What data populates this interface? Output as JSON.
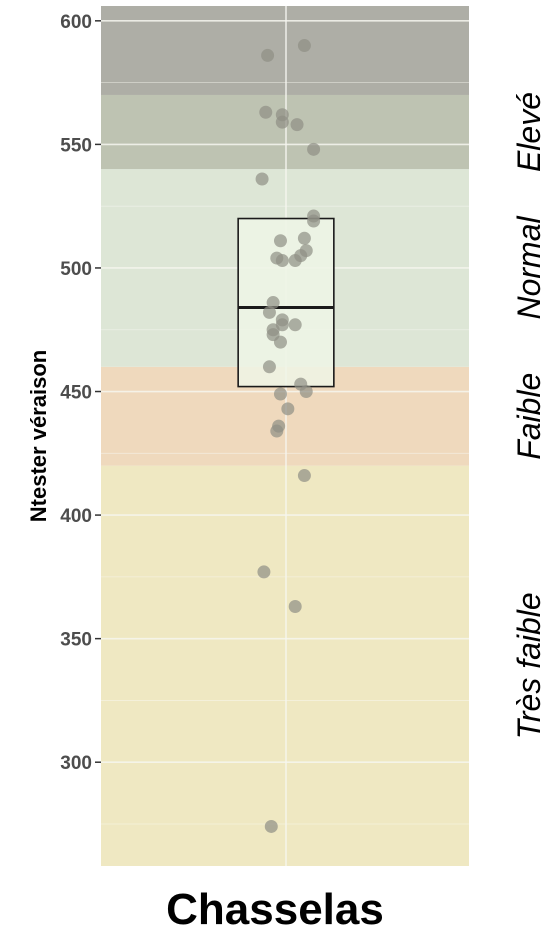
{
  "chart_data": {
    "type": "box",
    "ylabel": "Ntester véraison",
    "xlabel": "",
    "categories": [
      "Chasselas"
    ],
    "ylim": [
      258,
      606
    ],
    "yticks": [
      300,
      350,
      400,
      450,
      500,
      550,
      600
    ],
    "grid": true,
    "bands": [
      {
        "label": "Très faible",
        "from": 258,
        "to": 420,
        "color": "#efe8c2"
      },
      {
        "label": "Faible",
        "from": 420,
        "to": 460,
        "color": "#efd9bd"
      },
      {
        "label": "Normal",
        "from": 460,
        "to": 540,
        "color": "#dde6d6"
      },
      {
        "label": "Elevé",
        "from": 540,
        "to": 570,
        "color": "#bec3b2"
      },
      {
        "label": "",
        "from": 570,
        "to": 606,
        "color": "#aeaea6"
      }
    ],
    "box": {
      "q1": 452,
      "median": 484,
      "q3": 520
    },
    "points": [
      {
        "x": -0.1,
        "y": 586
      },
      {
        "x": 0.1,
        "y": 590
      },
      {
        "x": -0.11,
        "y": 563
      },
      {
        "x": -0.02,
        "y": 562
      },
      {
        "x": -0.02,
        "y": 559
      },
      {
        "x": 0.06,
        "y": 558
      },
      {
        "x": 0.15,
        "y": 548
      },
      {
        "x": -0.13,
        "y": 536
      },
      {
        "x": 0.15,
        "y": 521
      },
      {
        "x": 0.15,
        "y": 519
      },
      {
        "x": 0.1,
        "y": 512
      },
      {
        "x": -0.03,
        "y": 511
      },
      {
        "x": 0.11,
        "y": 507
      },
      {
        "x": 0.08,
        "y": 505
      },
      {
        "x": -0.05,
        "y": 504
      },
      {
        "x": -0.02,
        "y": 503
      },
      {
        "x": 0.05,
        "y": 503
      },
      {
        "x": -0.07,
        "y": 486
      },
      {
        "x": -0.09,
        "y": 482
      },
      {
        "x": -0.02,
        "y": 479
      },
      {
        "x": -0.02,
        "y": 477
      },
      {
        "x": 0.05,
        "y": 477
      },
      {
        "x": -0.07,
        "y": 475
      },
      {
        "x": -0.07,
        "y": 473
      },
      {
        "x": -0.03,
        "y": 470
      },
      {
        "x": -0.09,
        "y": 460
      },
      {
        "x": 0.08,
        "y": 453
      },
      {
        "x": 0.11,
        "y": 450
      },
      {
        "x": -0.03,
        "y": 449
      },
      {
        "x": 0.01,
        "y": 443
      },
      {
        "x": -0.04,
        "y": 436
      },
      {
        "x": -0.05,
        "y": 434
      },
      {
        "x": 0.1,
        "y": 416
      },
      {
        "x": -0.12,
        "y": 377
      },
      {
        "x": 0.05,
        "y": 363
      },
      {
        "x": -0.08,
        "y": 274
      }
    ],
    "colors": {
      "point": "#8f8f85",
      "box_fill": "#eef5e6",
      "box_stroke": "#1a1a1a",
      "grid": "#f6f6ee"
    }
  }
}
